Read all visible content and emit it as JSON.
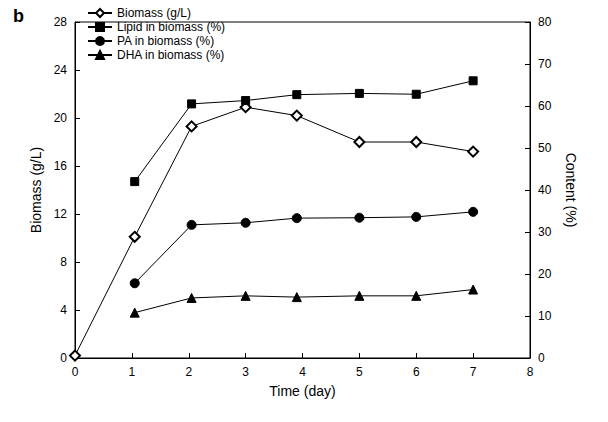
{
  "chart_data": {
    "type": "line",
    "title": "b",
    "x_label": "Time (day)",
    "y_label": "Biomass (g/L)",
    "y2_label": "Content (%)",
    "xlim": [
      0,
      8
    ],
    "xticks": [
      0,
      1,
      2,
      3,
      4,
      5,
      6,
      7,
      8
    ],
    "ylim": [
      0,
      28
    ],
    "yticks": [
      0,
      4,
      8,
      12,
      16,
      20,
      24,
      28
    ],
    "y2lim": [
      0,
      80
    ],
    "y2ticks": [
      0,
      10,
      20,
      30,
      40,
      50,
      60,
      70,
      80
    ],
    "grid": false,
    "legend": "upper left",
    "series": [
      {
        "name": "Biomass (g/L)",
        "color": "#000000",
        "marker": "diamond_open",
        "axis": "y",
        "x": [
          0,
          1.05,
          2.05,
          3,
          3.9,
          5,
          6,
          7
        ],
        "values": [
          0.2,
          10.1,
          19.3,
          20.9,
          20.2,
          18.0,
          18.0,
          17.2
        ]
      },
      {
        "name": "Lipid in biomass (%)",
        "color": "#000000",
        "marker": "square",
        "axis": "y2",
        "x": [
          1.05,
          2.05,
          3,
          3.9,
          5,
          6,
          7
        ],
        "values": [
          42,
          60.5,
          61.3,
          62.7,
          63,
          62.8,
          66
        ]
      },
      {
        "name": "PA in biomass (%)",
        "color": "#000000",
        "marker": "circle",
        "axis": "y2",
        "x": [
          1.05,
          2.05,
          3,
          3.9,
          5,
          6,
          7
        ],
        "values": [
          17.8,
          31.7,
          32.2,
          33.3,
          33.4,
          33.6,
          34.8
        ]
      },
      {
        "name": "DHA in biomass (%)",
        "color": "#000000",
        "marker": "triangle",
        "axis": "y2",
        "x": [
          1.05,
          2.05,
          3,
          3.9,
          5,
          6,
          7
        ],
        "values": [
          10.8,
          14.3,
          14.8,
          14.5,
          14.8,
          14.8,
          16.3
        ]
      }
    ]
  }
}
